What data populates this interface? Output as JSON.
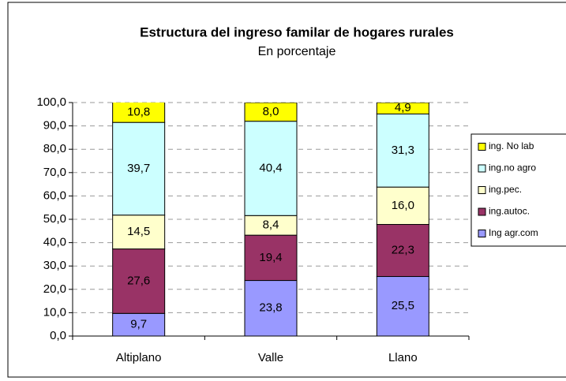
{
  "chart_data": {
    "type": "stacked_bar",
    "title": "Estructura del ingreso familar de hogares rurales",
    "subtitle": "En porcentaje",
    "categories": [
      "Altiplano",
      "Valle",
      "Llano"
    ],
    "series": [
      {
        "name": "Ing agr.com",
        "color": "#9999ff",
        "values": [
          9.7,
          23.8,
          25.5
        ],
        "value_labels": [
          "9,7",
          "23,8",
          "25,5"
        ]
      },
      {
        "name": "ing.autoc.",
        "color": "#993366",
        "values": [
          27.6,
          19.4,
          22.3
        ],
        "value_labels": [
          "27,6",
          "19,4",
          "22,3"
        ]
      },
      {
        "name": "ing.pec.",
        "color": "#ffffcc",
        "values": [
          14.5,
          8.4,
          16.0
        ],
        "value_labels": [
          "14,5",
          "8,4",
          "16,0"
        ]
      },
      {
        "name": "ing.no agro",
        "color": "#ccffff",
        "values": [
          39.7,
          40.4,
          31.3
        ],
        "value_labels": [
          "39,7",
          "40,4",
          "31,3"
        ]
      },
      {
        "name": "ing. No lab",
        "color": "#ffff00",
        "values": [
          10.8,
          8.0,
          4.9
        ],
        "value_labels": [
          "10,8",
          "8,0",
          "4,9"
        ]
      }
    ],
    "ylim": [
      0,
      100
    ],
    "yticks": [
      {
        "value": 0,
        "label": "0,0"
      },
      {
        "value": 10,
        "label": "10,0"
      },
      {
        "value": 20,
        "label": "20,0"
      },
      {
        "value": 30,
        "label": "30,0"
      },
      {
        "value": 40,
        "label": "40,0"
      },
      {
        "value": 50,
        "label": "50,0"
      },
      {
        "value": 60,
        "label": "60,0"
      },
      {
        "value": 70,
        "label": "70,0"
      },
      {
        "value": 80,
        "label": "80,0"
      },
      {
        "value": 90,
        "label": "90,0"
      },
      {
        "value": 100,
        "label": "100,0"
      }
    ],
    "grid": true,
    "legend": "right"
  }
}
